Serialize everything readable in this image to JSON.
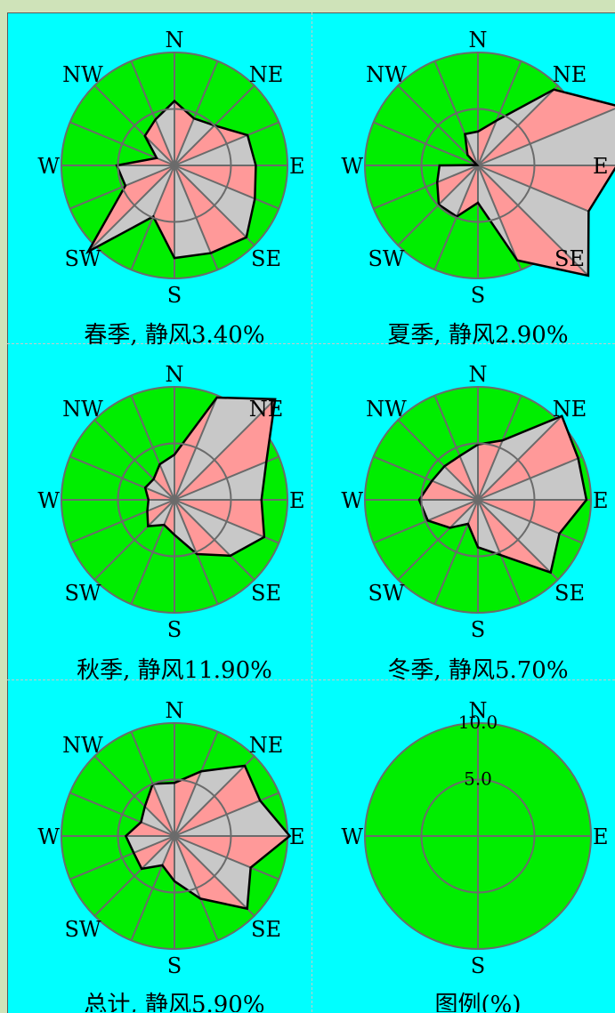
{
  "charts": [
    {
      "caption": "春季, 静风3.40%"
    },
    {
      "caption": "夏季, 静风2.90%"
    },
    {
      "caption": "秋季, 静风11.90%"
    },
    {
      "caption": "冬季, 静风5.70%"
    },
    {
      "caption": "总计, 静风5.90%"
    },
    {
      "caption": "图例(%)"
    }
  ],
  "chart_data": [
    {
      "type": "radar",
      "directions": [
        "N",
        "NNE",
        "NE",
        "ENE",
        "E",
        "ESE",
        "SE",
        "SSE",
        "S",
        "SSW",
        "SW",
        "WSW",
        "W",
        "WNW",
        "NW",
        "NNW"
      ],
      "labels": {
        "N": "N",
        "NE": "NE",
        "E": "E",
        "SE": "SE",
        "S": "S",
        "SW": "SW",
        "W": "W",
        "NW": "NW"
      },
      "rmax": 10.0,
      "values": [
        5.7,
        4.5,
        5.0,
        7.0,
        7.2,
        7.7,
        9.0,
        8.4,
        8.2,
        4.9,
        10.8,
        4.7,
        5.1,
        1.7,
        3.7,
        4.4
      ],
      "fill_colors": {
        "outer": "#00ee00",
        "light": "#c8c8c8",
        "pink": "#ff9999"
      }
    },
    {
      "type": "radar",
      "directions": [
        "N",
        "NNE",
        "NE",
        "ENE",
        "E",
        "ESE",
        "SE",
        "SSE",
        "S",
        "SSW",
        "SW",
        "WSW",
        "W",
        "WNW",
        "NW",
        "NNW"
      ],
      "labels": {
        "N": "N",
        "NE": "NE",
        "E": "E",
        "SE": "SE",
        "S": "S",
        "SW": "SW",
        "W": "W",
        "NW": "NW"
      },
      "rmax": 10.0,
      "values": [
        3.0,
        4.3,
        9.5,
        13.6,
        12.3,
        10.6,
        13.8,
        9.1,
        3.3,
        4.9,
        4.9,
        3.9,
        3.4,
        0.1,
        1.3,
        3.0
      ]
    },
    {
      "type": "radar",
      "directions": [
        "N",
        "NNE",
        "NE",
        "ENE",
        "E",
        "ESE",
        "SE",
        "SSE",
        "S",
        "SSW",
        "SW",
        "WSW",
        "W",
        "WNW",
        "NW",
        "NNW"
      ],
      "labels": {
        "N": "N",
        "NE": "NE",
        "E": "E",
        "SE": "SE",
        "S": "S",
        "SW": "SW",
        "W": "W",
        "NW": "NW"
      },
      "rmax": 10.0,
      "values": [
        4.0,
        9.8,
        12.6,
        8.8,
        7.7,
        8.6,
        7.0,
        5.2,
        3.1,
        2.4,
        3.3,
        2.6,
        2.3,
        2.8,
        2.6,
        3.4
      ]
    },
    {
      "type": "radar",
      "directions": [
        "N",
        "NNE",
        "NE",
        "ENE",
        "E",
        "ESE",
        "SE",
        "SSE",
        "S",
        "SSW",
        "SW",
        "WSW",
        "W",
        "WNW",
        "NW",
        "NNW"
      ],
      "labels": {
        "N": "N",
        "NE": "NE",
        "E": "E",
        "SE": "SE",
        "S": "S",
        "SW": "SW",
        "W": "W",
        "NW": "NW"
      },
      "rmax": 10.0,
      "values": [
        4.9,
        5.7,
        10.5,
        9.6,
        9.6,
        7.8,
        9.1,
        5.3,
        4.2,
        2.3,
        3.5,
        4.8,
        5.2,
        4.4,
        4.2,
        4.2
      ]
    },
    {
      "type": "radar",
      "directions": [
        "N",
        "NNE",
        "NE",
        "ENE",
        "E",
        "ESE",
        "SE",
        "SSE",
        "S",
        "SSW",
        "SW",
        "WSW",
        "W",
        "WNW",
        "NW",
        "NNW"
      ],
      "labels": {
        "N": "N",
        "NE": "NE",
        "E": "E",
        "SE": "SE",
        "S": "S",
        "SW": "SW",
        "W": "W",
        "NW": "NW"
      },
      "rmax": 10.0,
      "values": [
        4.7,
        6.2,
        8.8,
        8.2,
        10.2,
        7.3,
        9.1,
        6.0,
        4.0,
        2.8,
        4.1,
        3.9,
        4.3,
        3.2,
        3.7,
        5.0
      ]
    },
    {
      "type": "legend",
      "labels": {
        "N": "N",
        "E": "E",
        "S": "S",
        "W": "W"
      },
      "rings": [
        "10.0",
        "5.0"
      ],
      "rmax": 10.0
    }
  ]
}
